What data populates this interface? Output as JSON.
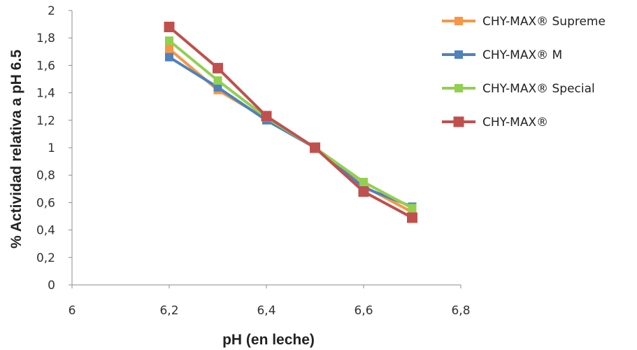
{
  "chart_data": {
    "type": "line",
    "xlabel": "pH (en leche)",
    "ylabel": "% Actividad relativa a pH 6.5",
    "xlim": [
      6,
      6.8
    ],
    "ylim": [
      0,
      2
    ],
    "x_ticks": [
      "6",
      "6,2",
      "6,4",
      "6,6",
      "6,8"
    ],
    "y_ticks": [
      "0",
      "0,2",
      "0,4",
      "0,6",
      "0,8",
      "1",
      "1,2",
      "1,4",
      "1,6",
      "1,8",
      "2"
    ],
    "x": [
      6.2,
      6.3,
      6.4,
      6.5,
      6.6,
      6.7
    ],
    "grid": false,
    "legend_position": "top-right",
    "series": [
      {
        "name": "CHY-MAX® Supreme",
        "color": "#F79646",
        "values": [
          1.72,
          1.42,
          1.21,
          1.0,
          0.72,
          0.53
        ]
      },
      {
        "name": "CHY-MAX® M",
        "color": "#4F81BD",
        "values": [
          1.66,
          1.44,
          1.2,
          1.0,
          0.71,
          0.57
        ]
      },
      {
        "name": "CHY-MAX® Special",
        "color": "#92D050",
        "values": [
          1.78,
          1.49,
          1.22,
          1.0,
          0.75,
          0.56
        ]
      },
      {
        "name": "CHY-MAX®",
        "color": "#C0504D",
        "values": [
          1.88,
          1.58,
          1.23,
          1.0,
          0.68,
          0.49
        ]
      }
    ]
  }
}
